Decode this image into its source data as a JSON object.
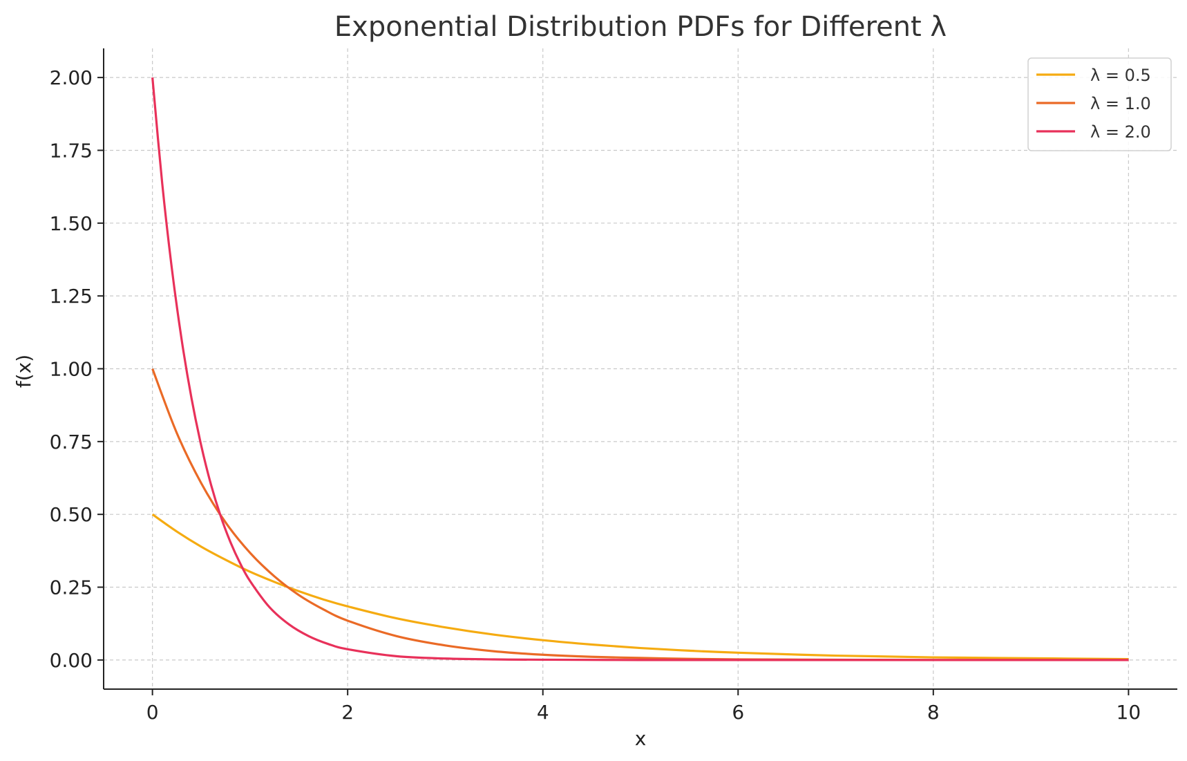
{
  "chart_data": {
    "type": "line",
    "title": "Exponential Distribution PDFs for Different λ",
    "xlabel": "x",
    "ylabel": "f(x)",
    "xlim": [
      -0.5,
      10.5
    ],
    "ylim": [
      -0.1,
      2.1
    ],
    "xticks": [
      0,
      2,
      4,
      6,
      8,
      10
    ],
    "xtick_labels": [
      "0",
      "2",
      "4",
      "6",
      "8",
      "10"
    ],
    "yticks": [
      0,
      0.25,
      0.5,
      0.75,
      1.0,
      1.25,
      1.5,
      1.75,
      2.0
    ],
    "ytick_labels": [
      "0.00",
      "0.25",
      "0.50",
      "0.75",
      "1.00",
      "1.25",
      "1.50",
      "1.75",
      "2.00"
    ],
    "grid": true,
    "legend_position": "top-right",
    "series": [
      {
        "name": "λ = 0.5",
        "color": "#f5ab11",
        "x": [
          0,
          0.25,
          0.5,
          0.75,
          1,
          1.25,
          1.5,
          1.75,
          2,
          2.5,
          3,
          3.5,
          4,
          4.5,
          5,
          5.5,
          6,
          7,
          8,
          9,
          10
        ],
        "y": [
          0.5,
          0.441,
          0.389,
          0.344,
          0.303,
          0.268,
          0.236,
          0.208,
          0.184,
          0.143,
          0.112,
          0.087,
          0.068,
          0.053,
          0.041,
          0.032,
          0.025,
          0.015,
          0.009,
          0.006,
          0.003
        ]
      },
      {
        "name": "λ = 1.0",
        "color": "#ea6a26",
        "x": [
          0,
          0.25,
          0.5,
          0.75,
          1,
          1.25,
          1.5,
          1.75,
          2,
          2.5,
          3,
          3.5,
          4,
          4.5,
          5,
          5.5,
          6,
          7,
          8,
          9,
          10
        ],
        "y": [
          1.0,
          0.779,
          0.607,
          0.472,
          0.368,
          0.287,
          0.223,
          0.174,
          0.135,
          0.082,
          0.05,
          0.03,
          0.018,
          0.011,
          0.007,
          0.004,
          0.002,
          0.001,
          0.0,
          0.0,
          0.0
        ]
      },
      {
        "name": "λ = 2.0",
        "color": "#e8315a",
        "x": [
          0,
          0.1,
          0.2,
          0.3,
          0.4,
          0.5,
          0.6,
          0.7,
          0.8,
          0.9,
          1,
          1.2,
          1.4,
          1.6,
          1.8,
          2,
          2.5,
          3,
          3.5,
          4,
          5,
          6,
          7,
          8,
          9,
          10
        ],
        "y": [
          2.0,
          1.637,
          1.341,
          1.098,
          0.899,
          0.736,
          0.602,
          0.493,
          0.404,
          0.331,
          0.271,
          0.181,
          0.122,
          0.082,
          0.055,
          0.037,
          0.013,
          0.005,
          0.002,
          0.001,
          0.0,
          0.0,
          0.0,
          0.0,
          0.0,
          0.0
        ]
      }
    ]
  }
}
